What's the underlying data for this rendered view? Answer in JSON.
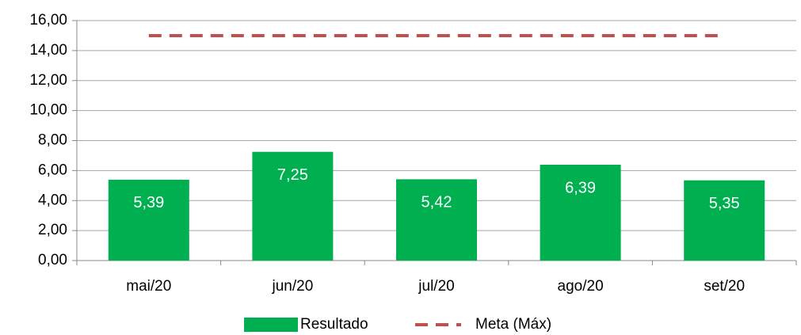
{
  "chart_data": {
    "type": "bar",
    "categories": [
      "mai/20",
      "jun/20",
      "jul/20",
      "ago/20",
      "set/20"
    ],
    "series": [
      {
        "name": "Resultado",
        "type": "bar",
        "color": "#00b050",
        "values": [
          5.39,
          7.25,
          5.42,
          6.39,
          5.35
        ],
        "value_labels": [
          "5,39",
          "7,25",
          "5,42",
          "6,39",
          "5,35"
        ]
      },
      {
        "name": "Meta (Máx)",
        "type": "line",
        "color": "#c0504d",
        "dashed": true,
        "values": [
          15,
          15,
          15,
          15,
          15
        ]
      }
    ],
    "ylim": [
      0,
      16
    ],
    "yticks": [
      {
        "value": 0,
        "label": "0,00"
      },
      {
        "value": 2,
        "label": "2,00"
      },
      {
        "value": 4,
        "label": "4,00"
      },
      {
        "value": 6,
        "label": "6,00"
      },
      {
        "value": 8,
        "label": "8,00"
      },
      {
        "value": 10,
        "label": "10,00"
      },
      {
        "value": 12,
        "label": "12,00"
      },
      {
        "value": 14,
        "label": "14,00"
      },
      {
        "value": 16,
        "label": "16,00"
      }
    ],
    "grid": true,
    "legend": "bottom"
  }
}
